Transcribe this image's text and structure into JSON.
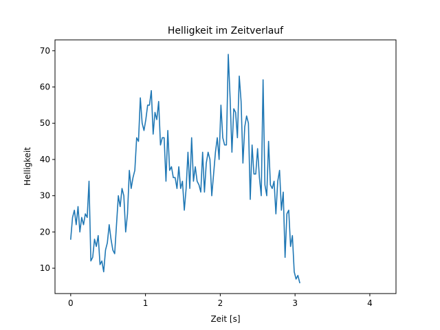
{
  "chart_data": {
    "type": "line",
    "title": "Helligkeit im Zeitverlauf",
    "xlabel": "Zeit [s]",
    "ylabel": "Helligkeit",
    "xlim": [
      -0.21,
      4.35
    ],
    "ylim": [
      3,
      73
    ],
    "grid": false,
    "legend": "none",
    "xticks": [
      0,
      1,
      2,
      3,
      4
    ],
    "xtick_labels": [
      "0",
      "1",
      "2",
      "3",
      "4"
    ],
    "yticks": [
      10,
      20,
      30,
      40,
      50,
      60,
      70
    ],
    "ytick_labels": [
      "10",
      "20",
      "30",
      "40",
      "50",
      "60",
      "70"
    ],
    "series": [
      {
        "name": "Helligkeit",
        "color": "#1f77b4",
        "step": 0.0245,
        "values": [
          18,
          24,
          26,
          22,
          27,
          20,
          24,
          22,
          25,
          24,
          34,
          12,
          13,
          18,
          16,
          19,
          11,
          12,
          9,
          15,
          17,
          22,
          18,
          15,
          14,
          22,
          30,
          27,
          32,
          30,
          20,
          25,
          37,
          32,
          35,
          37,
          46,
          45,
          57,
          50,
          48,
          51,
          55,
          55,
          59,
          47,
          53,
          51,
          56,
          44,
          46,
          46,
          34,
          48,
          37,
          38,
          35,
          35,
          32,
          38,
          32,
          34,
          26,
          32,
          42,
          32,
          46,
          34,
          38,
          34,
          33,
          31,
          42,
          31,
          39,
          42,
          40,
          30,
          36,
          42,
          46,
          40,
          55,
          46,
          44,
          44,
          69,
          57,
          42,
          54,
          53,
          46,
          63,
          56,
          39,
          49,
          52,
          50,
          29,
          44,
          36,
          36,
          43,
          35,
          30,
          62,
          33,
          30,
          45,
          33,
          32,
          34,
          25,
          34,
          37,
          26,
          31,
          13,
          25,
          26,
          16,
          19,
          9,
          7,
          8,
          6
        ]
      }
    ]
  }
}
